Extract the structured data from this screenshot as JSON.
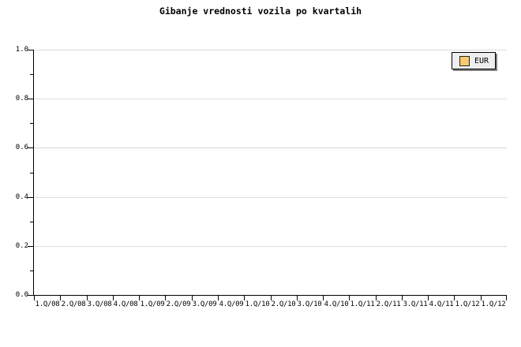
{
  "colors": {
    "background": "#FFFFFF",
    "text": "#000000",
    "axis": "#000000",
    "gridline": "#DCDCDC",
    "legend_background": "#EEEEEE",
    "legend_border": "#000000",
    "legend_shadow": "#808080",
    "series_eur_swatch": "#FBC96E"
  },
  "legend": {
    "position": "top-right",
    "entries": [
      {
        "label": "EUR",
        "swatch_color": "#FBC96E"
      }
    ]
  },
  "chart_data": {
    "type": "line",
    "title": "Gibanje vrednosti vozila po kvartalih",
    "categories": [
      "1.Q/08",
      "2.Q/08",
      "3.Q/08",
      "4.Q/08",
      "1.Q/09",
      "2.Q/09",
      "3.Q/09",
      "4.Q/09",
      "1.Q/10",
      "2.Q/10",
      "3.Q/10",
      "4.Q/10",
      "1.Q/11",
      "2.Q/11",
      "3.Q/11",
      "4.Q/11",
      "1.Q/12",
      "1.Q/12"
    ],
    "series": [
      {
        "name": "EUR",
        "values": []
      }
    ],
    "xlabel": "",
    "ylabel": "",
    "ylim": [
      0.0,
      1.0
    ],
    "yticks": [
      "1.0",
      "0.8",
      "0.6",
      "0.4",
      "0.2",
      "0.0"
    ],
    "y_minor_tick_step": 0.1,
    "grid": "horizontal-major",
    "legend_position": "top-right"
  }
}
